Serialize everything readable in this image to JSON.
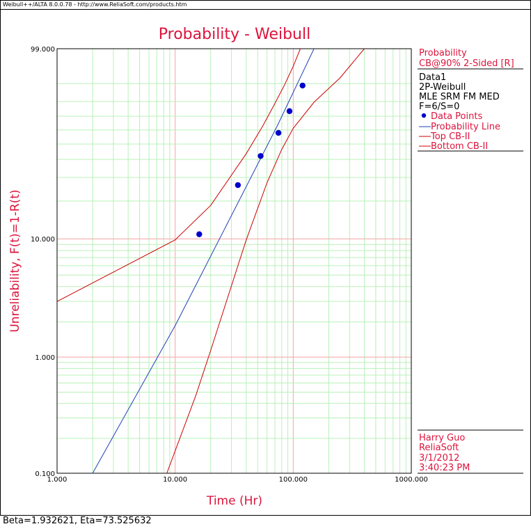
{
  "window": {
    "title": "Weibull++/ALTA 8.0.0.78 - http://www.ReliaSoft.com/products.htm"
  },
  "status_bar": {
    "text": "Beta=1.932621, Eta=73.525632"
  },
  "colors": {
    "title": "#dc143c",
    "data_points": "#0000cc",
    "probability_line": "#1f3fb5",
    "confidence_bounds": "#cc0000",
    "major_grid": "#f5a3a3",
    "minor_grid": "#b8f0b8"
  },
  "legend": {
    "header": "Probability",
    "confidence": "CB@90% 2-Sided [R]",
    "dataset": "Data1",
    "model": "2P-Weibull",
    "method": "MLE SRM FM MED",
    "counts": "F=6/S=0",
    "items": [
      {
        "label": "Data Points",
        "kind": "marker"
      },
      {
        "label": "Probability Line",
        "kind": "line-blue"
      },
      {
        "label": "Top CB-II",
        "kind": "line-red"
      },
      {
        "label": "Bottom CB-II",
        "kind": "line-red"
      }
    ]
  },
  "user_info": {
    "name": "Harry Guo",
    "company": "ReliaSoft",
    "date": "3/1/2012",
    "time": "3:40:23 PM"
  },
  "chart_data": {
    "type": "scatter",
    "title": "Probability - Weibull",
    "xlabel": "Time (Hr)",
    "ylabel": "Unreliability, F(t)=1-R(t)",
    "x_scale": "log",
    "y_scale": "weibull",
    "xlim": [
      1,
      1000
    ],
    "ylim": [
      0.1,
      99
    ],
    "x_ticks": [
      "1.000",
      "10.000",
      "100.000",
      "1000.000"
    ],
    "y_ticks": [
      "0.100",
      "1.000",
      "10.000",
      "99.000"
    ],
    "grid": true,
    "legend_position": "right",
    "series": [
      {
        "name": "Data Points",
        "kind": "points",
        "points": [
          {
            "x": 16,
            "y": 10.9
          },
          {
            "x": 34,
            "y": 26.4
          },
          {
            "x": 53,
            "y": 42.1
          },
          {
            "x": 75,
            "y": 57.9
          },
          {
            "x": 93,
            "y": 73.6
          },
          {
            "x": 120,
            "y": 89.1
          }
        ]
      },
      {
        "name": "Probability Line",
        "kind": "line",
        "points": [
          {
            "x": 2.0,
            "y": 0.1
          },
          {
            "x": 10,
            "y": 1.86
          },
          {
            "x": 73.5,
            "y": 63.2
          },
          {
            "x": 150,
            "y": 99
          }
        ]
      },
      {
        "name": "Top CB-II",
        "kind": "line",
        "points": [
          {
            "x": 1,
            "y": 2.99
          },
          {
            "x": 10,
            "y": 9.8
          },
          {
            "x": 20,
            "y": 18.5
          },
          {
            "x": 40,
            "y": 43.6
          },
          {
            "x": 55,
            "y": 62.7
          },
          {
            "x": 70,
            "y": 78.9
          },
          {
            "x": 85,
            "y": 89.8
          },
          {
            "x": 100,
            "y": 96.1
          },
          {
            "x": 115,
            "y": 99
          }
        ]
      },
      {
        "name": "Bottom CB-II",
        "kind": "line",
        "points": [
          {
            "x": 8.5,
            "y": 0.1
          },
          {
            "x": 15,
            "y": 0.47
          },
          {
            "x": 20,
            "y": 1.14
          },
          {
            "x": 40,
            "y": 9.8
          },
          {
            "x": 60,
            "y": 27.5
          },
          {
            "x": 80,
            "y": 46.4
          },
          {
            "x": 100,
            "y": 61.2
          },
          {
            "x": 150,
            "y": 79.6
          },
          {
            "x": 250,
            "y": 92.5
          },
          {
            "x": 400,
            "y": 99
          }
        ]
      }
    ]
  }
}
